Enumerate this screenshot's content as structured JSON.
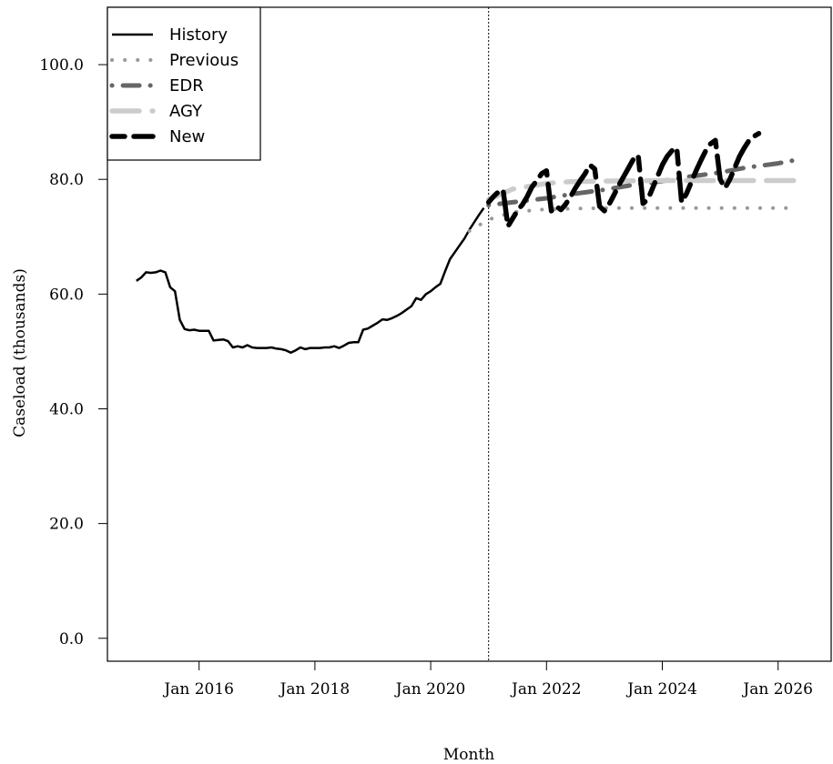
{
  "chart_data": {
    "type": "line",
    "title": "",
    "xlabel": "Month",
    "ylabel": "Caseload (thousands)",
    "xlim": [
      "2014-06",
      "2026-12"
    ],
    "ylim": [
      -4,
      110
    ],
    "x_ticks": [
      {
        "date": "2016-01",
        "label": "Jan 2016"
      },
      {
        "date": "2018-01",
        "label": "Jan 2018"
      },
      {
        "date": "2020-01",
        "label": "Jan 2020"
      },
      {
        "date": "2022-01",
        "label": "Jan 2022"
      },
      {
        "date": "2024-01",
        "label": "Jan 2024"
      },
      {
        "date": "2026-01",
        "label": "Jan 2026"
      }
    ],
    "y_ticks": [
      {
        "value": 0,
        "label": "0.0"
      },
      {
        "value": 20,
        "label": "20.0"
      },
      {
        "value": 40,
        "label": "40.0"
      },
      {
        "value": 60,
        "label": "60.0"
      },
      {
        "value": 80,
        "label": "80.0"
      },
      {
        "value": 100,
        "label": "100.0"
      }
    ],
    "forecast_start": "2021-01",
    "legend_position": "top-left",
    "series": [
      {
        "name": "History",
        "color": "#000000",
        "dash": "solid",
        "points": [
          [
            "2014-12",
            62.3
          ],
          [
            "2015-01",
            62.9
          ],
          [
            "2015-02",
            63.8
          ],
          [
            "2015-03",
            63.7
          ],
          [
            "2015-04",
            63.8
          ],
          [
            "2015-05",
            64.1
          ],
          [
            "2015-06",
            63.8
          ],
          [
            "2015-07",
            61.2
          ],
          [
            "2015-08",
            60.5
          ],
          [
            "2015-09",
            55.5
          ],
          [
            "2015-10",
            53.9
          ],
          [
            "2015-11",
            53.7
          ],
          [
            "2015-12",
            53.8
          ],
          [
            "2016-01",
            53.6
          ],
          [
            "2016-02",
            53.6
          ],
          [
            "2016-03",
            53.6
          ],
          [
            "2016-04",
            51.9
          ],
          [
            "2016-05",
            52.0
          ],
          [
            "2016-06",
            52.1
          ],
          [
            "2016-07",
            51.8
          ],
          [
            "2016-08",
            50.7
          ],
          [
            "2016-09",
            50.9
          ],
          [
            "2016-10",
            50.7
          ],
          [
            "2016-11",
            51.1
          ],
          [
            "2016-12",
            50.7
          ],
          [
            "2017-01",
            50.6
          ],
          [
            "2017-02",
            50.6
          ],
          [
            "2017-03",
            50.6
          ],
          [
            "2017-04",
            50.7
          ],
          [
            "2017-05",
            50.5
          ],
          [
            "2017-06",
            50.4
          ],
          [
            "2017-07",
            50.2
          ],
          [
            "2017-08",
            49.8
          ],
          [
            "2017-09",
            50.2
          ],
          [
            "2017-10",
            50.7
          ],
          [
            "2017-11",
            50.4
          ],
          [
            "2017-12",
            50.6
          ],
          [
            "2018-01",
            50.6
          ],
          [
            "2018-02",
            50.6
          ],
          [
            "2018-03",
            50.7
          ],
          [
            "2018-04",
            50.7
          ],
          [
            "2018-05",
            50.9
          ],
          [
            "2018-06",
            50.6
          ],
          [
            "2018-07",
            51.0
          ],
          [
            "2018-08",
            51.5
          ],
          [
            "2018-09",
            51.6
          ],
          [
            "2018-10",
            51.6
          ],
          [
            "2018-11",
            53.8
          ],
          [
            "2018-12",
            54.0
          ],
          [
            "2019-01",
            54.5
          ],
          [
            "2019-02",
            55.0
          ],
          [
            "2019-03",
            55.6
          ],
          [
            "2019-04",
            55.5
          ],
          [
            "2019-05",
            55.8
          ],
          [
            "2019-06",
            56.2
          ],
          [
            "2019-07",
            56.7
          ],
          [
            "2019-08",
            57.3
          ],
          [
            "2019-09",
            57.9
          ],
          [
            "2019-10",
            59.3
          ],
          [
            "2019-11",
            59.0
          ],
          [
            "2019-12",
            60.0
          ],
          [
            "2020-01",
            60.5
          ],
          [
            "2020-02",
            61.2
          ],
          [
            "2020-03",
            61.8
          ],
          [
            "2020-04",
            64.0
          ],
          [
            "2020-05",
            66.1
          ],
          [
            "2020-06",
            67.3
          ],
          [
            "2020-07",
            68.5
          ],
          [
            "2020-08",
            69.7
          ],
          [
            "2020-09",
            71.2
          ],
          [
            "2020-10",
            72.5
          ],
          [
            "2020-11",
            73.8
          ],
          [
            "2020-12",
            75.0
          ]
        ]
      },
      {
        "name": "Previous",
        "color": "#999999",
        "dash": "dotted",
        "points": [
          [
            "2020-09",
            71.0
          ],
          [
            "2021-01",
            73.0
          ],
          [
            "2021-06",
            74.3
          ],
          [
            "2022-01",
            74.8
          ],
          [
            "2023-01",
            75.0
          ],
          [
            "2024-01",
            75.0
          ],
          [
            "2025-01",
            75.0
          ],
          [
            "2026-01",
            75.0
          ],
          [
            "2026-03",
            75.0
          ]
        ]
      },
      {
        "name": "EDR",
        "color": "#666666",
        "dash": "dotdash",
        "points": [
          [
            "2021-01",
            75.5
          ],
          [
            "2021-06",
            76.0
          ],
          [
            "2022-01",
            76.7
          ],
          [
            "2022-06",
            77.4
          ],
          [
            "2023-01",
            78.2
          ],
          [
            "2023-06",
            78.9
          ],
          [
            "2024-01",
            79.7
          ],
          [
            "2024-06",
            80.4
          ],
          [
            "2025-01",
            81.2
          ],
          [
            "2025-06",
            82.0
          ],
          [
            "2026-01",
            82.8
          ],
          [
            "2026-06",
            83.6
          ]
        ]
      },
      {
        "name": "AGY",
        "color": "#cccccc",
        "dash": "longdash",
        "points": [
          [
            "2021-01",
            76.5
          ],
          [
            "2021-06",
            78.3
          ],
          [
            "2022-01",
            79.3
          ],
          [
            "2022-06",
            79.6
          ],
          [
            "2023-01",
            79.7
          ],
          [
            "2024-01",
            79.8
          ],
          [
            "2025-01",
            79.8
          ],
          [
            "2026-01",
            79.8
          ],
          [
            "2026-06",
            79.8
          ]
        ]
      },
      {
        "name": "New",
        "color": "#000000",
        "dash": "twodash",
        "points": [
          [
            "2021-01",
            76.0
          ],
          [
            "2021-02",
            77.0
          ],
          [
            "2021-03",
            77.8
          ],
          [
            "2021-04",
            78.2
          ],
          [
            "2021-05",
            71.8
          ],
          [
            "2021-06",
            73.2
          ],
          [
            "2021-07",
            74.6
          ],
          [
            "2021-08",
            75.6
          ],
          [
            "2021-09",
            77.0
          ],
          [
            "2021-10",
            78.7
          ],
          [
            "2021-11",
            79.8
          ],
          [
            "2021-12",
            81.0
          ],
          [
            "2022-01",
            81.5
          ],
          [
            "2022-02",
            74.5
          ],
          [
            "2022-03",
            75.3
          ],
          [
            "2022-04",
            74.7
          ],
          [
            "2022-05",
            75.7
          ],
          [
            "2022-06",
            77.0
          ],
          [
            "2022-07",
            78.5
          ],
          [
            "2022-08",
            79.8
          ],
          [
            "2022-09",
            81.0
          ],
          [
            "2022-10",
            82.5
          ],
          [
            "2022-11",
            81.8
          ],
          [
            "2022-12",
            75.3
          ],
          [
            "2023-01",
            74.5
          ],
          [
            "2023-02",
            75.7
          ],
          [
            "2023-03",
            77.3
          ],
          [
            "2023-04",
            79.0
          ],
          [
            "2023-05",
            80.5
          ],
          [
            "2023-06",
            82.0
          ],
          [
            "2023-07",
            83.5
          ],
          [
            "2023-08",
            84.2
          ],
          [
            "2023-09",
            75.8
          ],
          [
            "2023-10",
            76.5
          ],
          [
            "2023-11",
            78.5
          ],
          [
            "2023-12",
            80.5
          ],
          [
            "2024-01",
            82.5
          ],
          [
            "2024-02",
            84.0
          ],
          [
            "2024-03",
            85.0
          ],
          [
            "2024-04",
            85.5
          ],
          [
            "2024-05",
            76.0
          ],
          [
            "2024-06",
            77.5
          ],
          [
            "2024-07",
            79.5
          ],
          [
            "2024-08",
            81.5
          ],
          [
            "2024-09",
            83.3
          ],
          [
            "2024-10",
            85.0
          ],
          [
            "2024-11",
            86.2
          ],
          [
            "2024-12",
            86.8
          ],
          [
            "2025-01",
            80.0
          ],
          [
            "2025-02",
            78.5
          ],
          [
            "2025-03",
            80.0
          ],
          [
            "2025-04",
            82.0
          ],
          [
            "2025-05",
            84.0
          ],
          [
            "2025-06",
            85.5
          ],
          [
            "2025-07",
            86.8
          ],
          [
            "2025-08",
            87.5
          ],
          [
            "2025-09",
            88.0
          ]
        ]
      }
    ]
  }
}
